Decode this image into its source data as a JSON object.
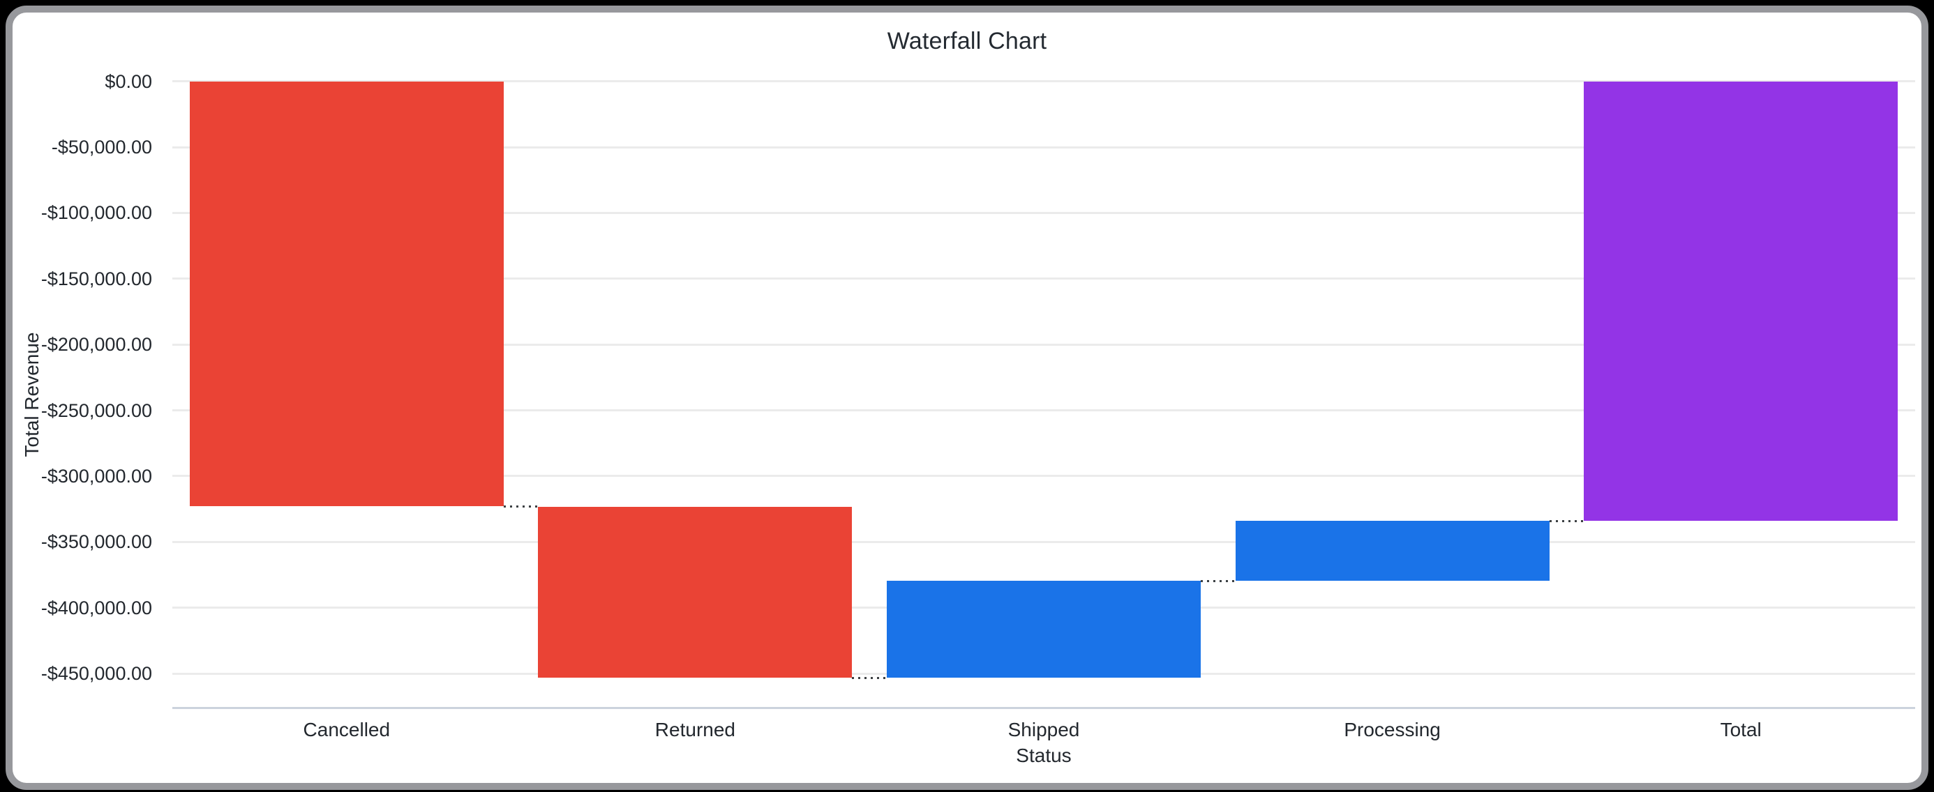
{
  "window": {
    "background_color": "#000000",
    "card_border_color": "#97989c",
    "card_background": "#ffffff"
  },
  "chart": {
    "text_color": "#23282e",
    "grid_color": "#ebebeb",
    "axis_line_color": "#ccd3dd"
  },
  "chart_data": {
    "type": "waterfall",
    "title": "Waterfall Chart",
    "xlabel": "Status",
    "ylabel": "Total Revenue",
    "categories": [
      "Cancelled",
      "Returned",
      "Shipped",
      "Processing",
      "Total"
    ],
    "bars": [
      {
        "label": "Cancelled",
        "role": "decrease",
        "delta": -323100,
        "cumulative_start": 0,
        "cumulative_end": -323100,
        "color": "#ea4335"
      },
      {
        "label": "Returned",
        "role": "decrease",
        "delta": -130250,
        "cumulative_start": -323100,
        "cumulative_end": -453350,
        "color": "#ea4335"
      },
      {
        "label": "Shipped",
        "role": "increase",
        "delta": 73650,
        "cumulative_start": -453350,
        "cumulative_end": -379700,
        "color": "#1a73e8"
      },
      {
        "label": "Processing",
        "role": "increase",
        "delta": 45700,
        "cumulative_start": -379700,
        "cumulative_end": -334000,
        "color": "#1a73e8"
      },
      {
        "label": "Total",
        "role": "total",
        "delta": -334000,
        "cumulative_start": 0,
        "cumulative_end": -334000,
        "color": "#9334e6"
      }
    ],
    "y_axis": {
      "tick_labels": [
        "$0.00",
        "-$50,000.00",
        "-$100,000.00",
        "-$150,000.00",
        "-$200,000.00",
        "-$250,000.00",
        "-$300,000.00",
        "-$350,000.00",
        "-$400,000.00",
        "-$450,000.00"
      ],
      "tick_values": [
        0,
        -50000,
        -100000,
        -150000,
        -200000,
        -250000,
        -300000,
        -350000,
        -400000,
        -450000
      ],
      "ylim": [
        -476000,
        14000
      ]
    },
    "grid": true,
    "legend": "none",
    "connectors": {
      "style": "dotted",
      "color": "#3c4043"
    },
    "values_estimated_from_gridlines": true
  }
}
